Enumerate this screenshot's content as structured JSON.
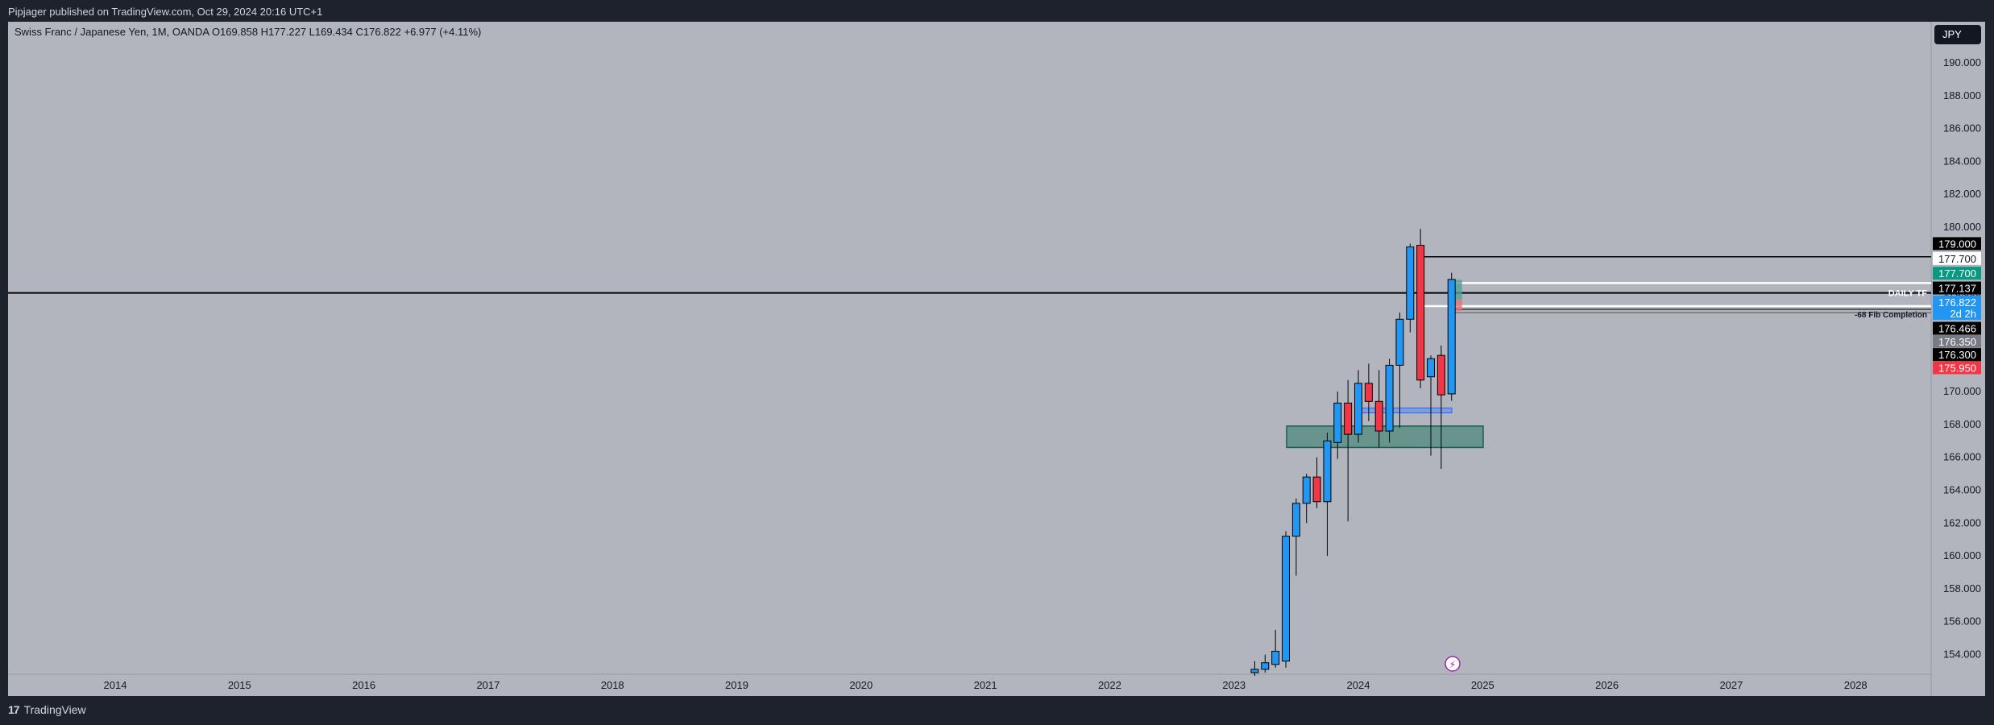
{
  "header": {
    "publish_text": "Pipjager published on TradingView.com, Oct 29, 2024 20:16 UTC+1"
  },
  "symbol": {
    "info_text": "Swiss Franc / Japanese Yen, 1M, OANDA  O169.858  H177.227  L169.434  C176.822  +6.977 (+4.11%)"
  },
  "currency_button": "JPY",
  "footer": {
    "brand": "TradingView",
    "logo_glyph": "17"
  },
  "colors": {
    "background": "#b2b5be",
    "up": "#2196f3",
    "down": "#f23645",
    "zone": "#4f8a7e"
  },
  "chart_data": {
    "type": "candlestick",
    "title": "Swiss Franc / Japanese Yen, 1M, OANDA",
    "x_axis_labels": [
      "2014",
      "2015",
      "2016",
      "2017",
      "2018",
      "2019",
      "2020",
      "2021",
      "2022",
      "2023",
      "2024",
      "2025",
      "2026",
      "2027",
      "2028"
    ],
    "y_axis_labels": [
      "190.000",
      "188.000",
      "186.000",
      "184.000",
      "182.000",
      "180.000",
      "178.000",
      "176.000",
      "174.000",
      "172.000",
      "170.000",
      "168.000",
      "166.000",
      "164.000",
      "162.000",
      "160.000",
      "158.000",
      "156.000",
      "154.000"
    ],
    "ylim": [
      152.8,
      192.5
    ],
    "candles": [
      {
        "t": "2023-03",
        "o": 152.9,
        "h": 153.6,
        "l": 152.7,
        "c": 153.1
      },
      {
        "t": "2023-04",
        "o": 153.1,
        "h": 154.0,
        "l": 152.9,
        "c": 153.5
      },
      {
        "t": "2023-05",
        "o": 153.4,
        "h": 155.5,
        "l": 153.2,
        "c": 154.2
      },
      {
        "t": "2023-06",
        "o": 153.6,
        "h": 161.5,
        "l": 153.2,
        "c": 161.2
      },
      {
        "t": "2023-07",
        "o": 161.2,
        "h": 163.5,
        "l": 158.8,
        "c": 163.2
      },
      {
        "t": "2023-08",
        "o": 163.2,
        "h": 165.0,
        "l": 162.0,
        "c": 164.8
      },
      {
        "t": "2023-09",
        "o": 164.8,
        "h": 166.0,
        "l": 162.9,
        "c": 163.3
      },
      {
        "t": "2023-10",
        "o": 163.3,
        "h": 167.5,
        "l": 160.0,
        "c": 167.0
      },
      {
        "t": "2023-11",
        "o": 166.9,
        "h": 170.0,
        "l": 165.9,
        "c": 169.3
      },
      {
        "t": "2023-12",
        "o": 169.3,
        "h": 170.7,
        "l": 162.1,
        "c": 167.4
      },
      {
        "t": "2024-01",
        "o": 167.4,
        "h": 171.3,
        "l": 166.9,
        "c": 170.5
      },
      {
        "t": "2024-02",
        "o": 170.5,
        "h": 171.7,
        "l": 168.2,
        "c": 169.4
      },
      {
        "t": "2024-03",
        "o": 169.4,
        "h": 171.3,
        "l": 166.6,
        "c": 167.6
      },
      {
        "t": "2024-04",
        "o": 167.6,
        "h": 172.0,
        "l": 166.9,
        "c": 171.6
      },
      {
        "t": "2024-05",
        "o": 171.6,
        "h": 174.8,
        "l": 167.8,
        "c": 174.4
      },
      {
        "t": "2024-06",
        "o": 174.4,
        "h": 179.0,
        "l": 173.6,
        "c": 178.8
      },
      {
        "t": "2024-07",
        "o": 178.9,
        "h": 179.9,
        "l": 170.2,
        "c": 170.7
      },
      {
        "t": "2024-08",
        "o": 170.9,
        "h": 172.2,
        "l": 166.1,
        "c": 172.0
      },
      {
        "t": "2024-09",
        "o": 172.2,
        "h": 172.8,
        "l": 165.3,
        "c": 169.8
      },
      {
        "t": "2024-10",
        "o": 169.858,
        "h": 177.227,
        "l": 169.434,
        "c": 176.822
      }
    ],
    "price_labels": [
      {
        "text": "179.000",
        "price": 179.0,
        "bg": "#000000",
        "fg": "#ffffff"
      },
      {
        "text": "177.700",
        "price": 178.1,
        "bg": "#ffffff",
        "fg": "#131722"
      },
      {
        "text": "177.700",
        "price": 177.2,
        "bg": "#089981",
        "fg": "#ffffff"
      },
      {
        "text": "177.137",
        "price": 176.3,
        "bg": "#000000",
        "fg": "#ffffff"
      },
      {
        "text": "176.822",
        "price": 175.45,
        "bg": "#2196f3",
        "fg": "#ffffff"
      },
      {
        "text": "2d 2h",
        "price": 174.75,
        "bg": "#2196f3",
        "fg": "#ffffff"
      },
      {
        "text": "176.466",
        "price": 173.85,
        "bg": "#000000",
        "fg": "#ffffff"
      },
      {
        "text": "176.350",
        "price": 173.05,
        "bg": "#787b86",
        "fg": "#ffffff"
      },
      {
        "text": "176.300",
        "price": 172.25,
        "bg": "#000000",
        "fg": "#ffffff"
      },
      {
        "text": "175.950",
        "price": 171.45,
        "bg": "#f23645",
        "fg": "#ffffff"
      }
    ],
    "annotations": [
      {
        "text": "DAILY TF",
        "price": 176.0
      },
      {
        "text": "-68 Fib Completion",
        "price": 174.7
      }
    ]
  }
}
